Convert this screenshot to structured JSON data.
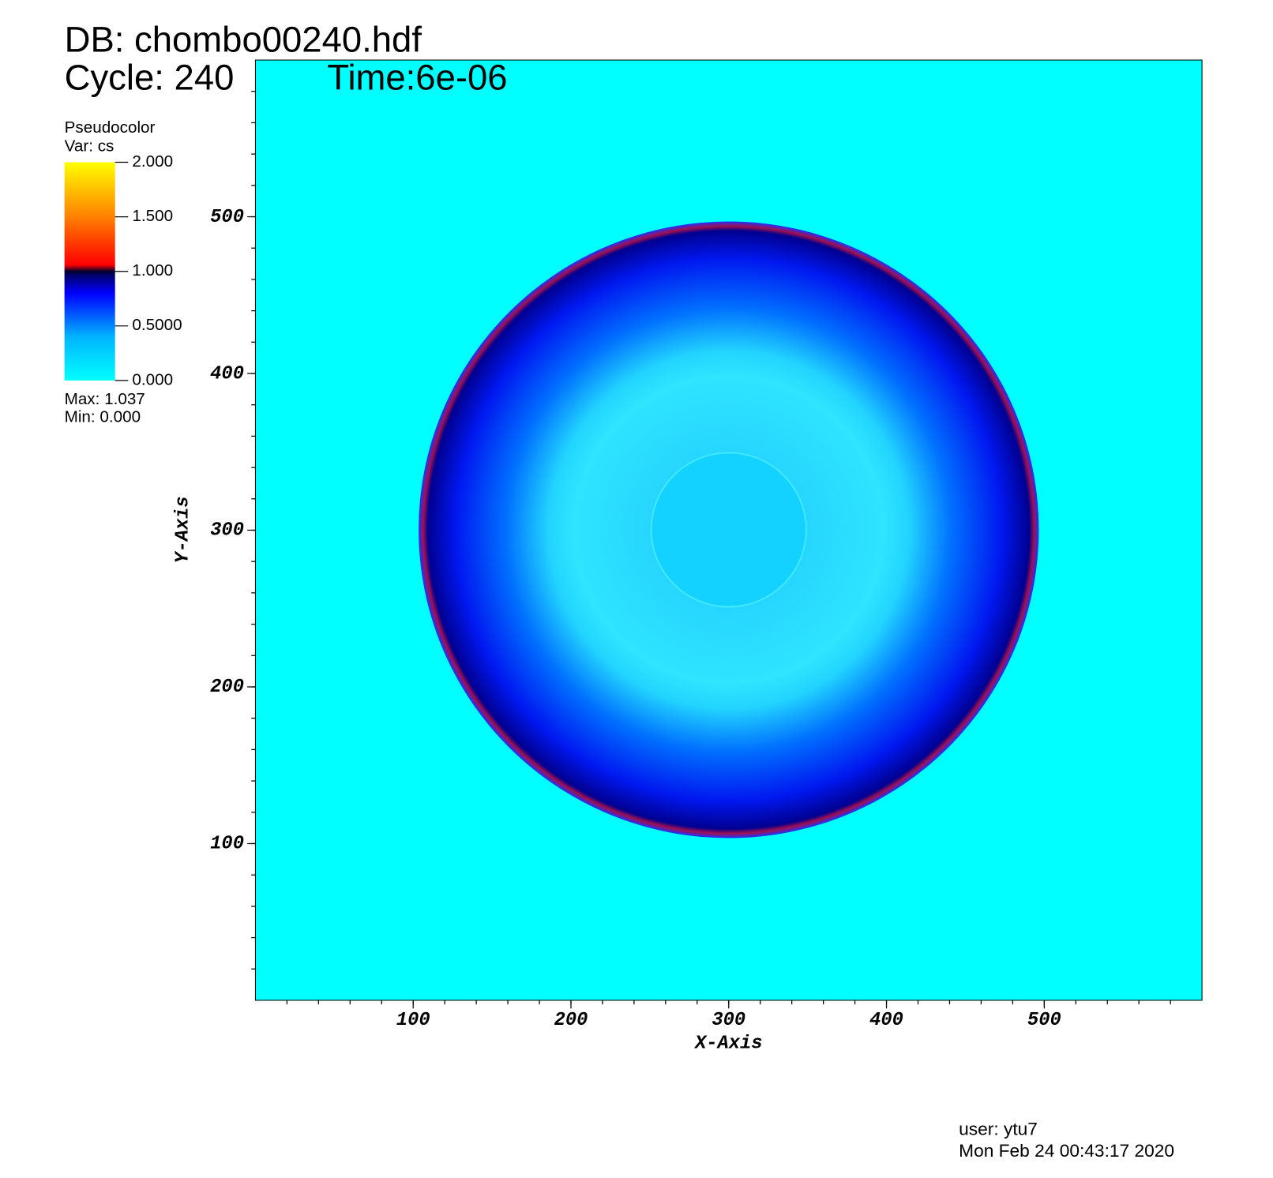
{
  "chart_data": {
    "type": "pseudocolor",
    "database": "DB: chombo00240.hdf",
    "cycle": "Cycle: 240",
    "time": "Time:6e-06",
    "legend": {
      "title": "Pseudocolor",
      "variable": "Var: cs",
      "range": [
        0,
        2
      ],
      "ticks": [
        {
          "value": 2,
          "label": "2.000"
        },
        {
          "value": 1.5,
          "label": "1.500"
        },
        {
          "value": 1,
          "label": "1.000"
        },
        {
          "value": 0.5,
          "label": "0.5000"
        },
        {
          "value": 0,
          "label": "0.000"
        }
      ],
      "max": "Max:  1.037",
      "min": "Min:  0.000"
    },
    "xlabel": "X-Axis",
    "ylabel": "Y-Axis",
    "xlim": [
      0,
      600
    ],
    "ylim": [
      0,
      600
    ],
    "xticks": [
      100,
      200,
      300,
      400,
      500
    ],
    "yticks": [
      100,
      200,
      300,
      400,
      500
    ],
    "minor_tick_step": 20,
    "user": "user: ytu7",
    "date": "Mon Feb 24 00:43:17 2020"
  }
}
